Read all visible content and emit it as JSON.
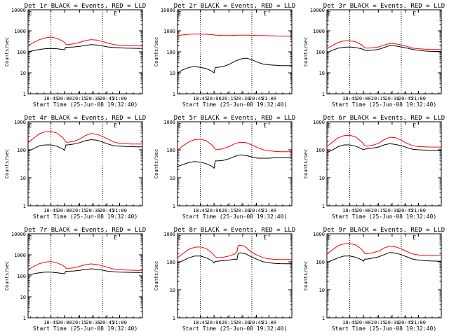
{
  "colors": {
    "events": "#000000",
    "lld": "#ff0000",
    "axis": "#000000",
    "background": "#ffffff"
  },
  "common": {
    "ylabel": "Counts/sec",
    "xlabel": "Start Time (25-Jun-08 19:32:40)",
    "xticks": [
      "18:45",
      "20:00",
      "20:15",
      "20:30",
      "20:45",
      "21:00"
    ],
    "yticks": [
      "1",
      "10",
      "100",
      "1000",
      "10000"
    ],
    "marker_e": "E"
  },
  "chart_data": [
    {
      "type": "line",
      "title": "Det 1r BLACK = Events, RED = LLD",
      "xlabel": "Start Time (25-Jun-08 19:32:40)",
      "ylabel": "Counts/sec",
      "yscale": "log",
      "ylim": [
        1,
        10000
      ],
      "xlim": [
        0,
        100
      ],
      "markers_x": [
        20,
        65
      ],
      "end_marker_x": 75,
      "x": [
        0,
        5,
        10,
        15,
        20,
        25,
        30,
        32,
        33,
        35,
        40,
        45,
        50,
        55,
        60,
        65,
        70,
        75,
        80,
        85,
        90,
        95,
        100
      ],
      "series": [
        {
          "name": "Events",
          "values": [
            100,
            115,
            130,
            140,
            145,
            140,
            130,
            125,
            165,
            165,
            170,
            180,
            200,
            220,
            210,
            190,
            170,
            160,
            155,
            150,
            148,
            146,
            145
          ]
        },
        {
          "name": "LLD",
          "values": [
            200,
            280,
            380,
            460,
            500,
            440,
            330,
            280,
            230,
            220,
            240,
            280,
            340,
            380,
            360,
            310,
            260,
            220,
            205,
            200,
            195,
            190,
            190
          ]
        }
      ]
    },
    {
      "type": "line",
      "title": "Det 2r BLACK = Events, RED = LLD",
      "xlabel": "Start Time (25-Jun-08 19:32:40)",
      "ylabel": "Counts/sec",
      "yscale": "log",
      "ylim": [
        1,
        10000
      ],
      "xlim": [
        0,
        100
      ],
      "markers_x": [
        20,
        65
      ],
      "end_marker_x": 75,
      "x": [
        0,
        5,
        10,
        15,
        20,
        25,
        30,
        32,
        33,
        35,
        40,
        45,
        50,
        55,
        60,
        65,
        70,
        75,
        80,
        85,
        90,
        95,
        100
      ],
      "series": [
        {
          "name": "Events",
          "values": [
            10,
            14,
            18,
            20,
            18,
            16,
            12,
            10,
            18,
            18,
            20,
            25,
            35,
            45,
            50,
            42,
            32,
            26,
            24,
            23,
            22,
            22,
            22
          ]
        },
        {
          "name": "LLD",
          "values": [
            600,
            640,
            680,
            700,
            700,
            680,
            650,
            640,
            620,
            610,
            600,
            600,
            610,
            620,
            620,
            610,
            600,
            590,
            580,
            570,
            560,
            560,
            560
          ]
        }
      ]
    },
    {
      "type": "line",
      "title": "Det 3r BLACK = Events, RED = LLD",
      "xlabel": "Start Time (25-Jun-08 19:32:40)",
      "ylabel": "Counts/sec",
      "yscale": "log",
      "ylim": [
        1,
        10000
      ],
      "xlim": [
        0,
        100
      ],
      "markers_x": [
        20,
        65
      ],
      "end_marker_x": 75,
      "x": [
        0,
        5,
        10,
        15,
        20,
        25,
        30,
        32,
        33,
        35,
        40,
        45,
        50,
        55,
        60,
        65,
        70,
        75,
        80,
        85,
        90,
        95,
        100
      ],
      "series": [
        {
          "name": "Events",
          "values": [
            90,
            120,
            150,
            165,
            170,
            160,
            140,
            130,
            120,
            115,
            120,
            130,
            160,
            200,
            190,
            170,
            150,
            130,
            118,
            110,
            105,
            104,
            104
          ]
        },
        {
          "name": "LLD",
          "values": [
            140,
            200,
            280,
            330,
            340,
            300,
            220,
            180,
            155,
            150,
            155,
            170,
            210,
            250,
            240,
            210,
            180,
            150,
            140,
            135,
            130,
            128,
            128
          ]
        }
      ]
    },
    {
      "type": "line",
      "title": "Det 4r BLACK = Events, RED = LLD",
      "xlabel": "Start Time (25-Jun-08 19:32:40)",
      "ylabel": "Counts/sec",
      "yscale": "log",
      "ylim": [
        1,
        1000
      ],
      "xlim": [
        0,
        100
      ],
      "markers_x": [
        20,
        65
      ],
      "end_marker_x": 75,
      "x": [
        0,
        5,
        10,
        15,
        20,
        25,
        30,
        32,
        33,
        35,
        40,
        45,
        50,
        55,
        60,
        65,
        70,
        75,
        80,
        85,
        90,
        95,
        100
      ],
      "series": [
        {
          "name": "Events",
          "values": [
            90,
            110,
            140,
            150,
            150,
            135,
            110,
            95,
            150,
            150,
            160,
            180,
            210,
            230,
            220,
            190,
            160,
            140,
            135,
            132,
            130,
            128,
            128
          ]
        },
        {
          "name": "LLD",
          "values": [
            180,
            260,
            380,
            440,
            450,
            400,
            280,
            220,
            190,
            185,
            200,
            240,
            320,
            380,
            360,
            300,
            240,
            190,
            170,
            165,
            160,
            160,
            160
          ]
        }
      ]
    },
    {
      "type": "line",
      "title": "Det 5r BLACK = Events, RED = LLD",
      "xlabel": "Start Time (25-Jun-08 19:32:40)",
      "ylabel": "Counts/sec",
      "yscale": "log",
      "ylim": [
        1,
        1000
      ],
      "xlim": [
        0,
        100
      ],
      "markers_x": [
        20,
        65
      ],
      "end_marker_x": 75,
      "x": [
        0,
        5,
        10,
        15,
        20,
        25,
        30,
        32,
        33,
        35,
        40,
        45,
        50,
        55,
        60,
        65,
        70,
        75,
        80,
        85,
        90,
        95,
        100
      ],
      "series": [
        {
          "name": "Events",
          "values": [
            25,
            30,
            35,
            38,
            36,
            32,
            26,
            22,
            40,
            40,
            42,
            48,
            58,
            66,
            62,
            56,
            50,
            50,
            50,
            52,
            52,
            52,
            52
          ]
        },
        {
          "name": "LLD",
          "values": [
            100,
            140,
            190,
            230,
            240,
            210,
            150,
            120,
            105,
            100,
            110,
            130,
            165,
            185,
            180,
            150,
            120,
            100,
            92,
            88,
            85,
            85,
            85
          ]
        }
      ]
    },
    {
      "type": "line",
      "title": "Det 6r BLACK = Events, RED = LLD",
      "xlabel": "Start Time (25-Jun-08 19:32:40)",
      "ylabel": "Counts/sec",
      "yscale": "log",
      "ylim": [
        1,
        1000
      ],
      "xlim": [
        0,
        100
      ],
      "markers_x": [
        20,
        65
      ],
      "end_marker_x": 75,
      "x": [
        0,
        5,
        10,
        15,
        20,
        25,
        30,
        32,
        33,
        35,
        40,
        45,
        50,
        55,
        60,
        65,
        70,
        75,
        80,
        85,
        90,
        95,
        100
      ],
      "series": [
        {
          "name": "Events",
          "values": [
            80,
            100,
            130,
            150,
            150,
            135,
            110,
            100,
            105,
            110,
            115,
            125,
            150,
            165,
            155,
            140,
            120,
            105,
            100,
            98,
            96,
            95,
            95
          ]
        },
        {
          "name": "LLD",
          "values": [
            130,
            190,
            270,
            320,
            330,
            290,
            200,
            160,
            140,
            135,
            145,
            170,
            230,
            280,
            270,
            220,
            170,
            140,
            130,
            128,
            126,
            125,
            125
          ]
        }
      ]
    },
    {
      "type": "line",
      "title": "Det 7r BLACK = Events, RED = LLD",
      "xlabel": "Start Time (25-Jun-08 19:32:40)",
      "ylabel": "Counts/sec",
      "yscale": "log",
      "ylim": [
        1,
        10000
      ],
      "xlim": [
        0,
        100
      ],
      "markers_x": [
        20,
        65
      ],
      "end_marker_x": 75,
      "x": [
        0,
        5,
        10,
        15,
        20,
        25,
        30,
        32,
        33,
        35,
        40,
        45,
        50,
        55,
        60,
        65,
        70,
        75,
        80,
        85,
        90,
        95,
        100
      ],
      "series": [
        {
          "name": "Events",
          "values": [
            110,
            125,
            140,
            150,
            150,
            140,
            130,
            125,
            165,
            165,
            170,
            180,
            200,
            215,
            205,
            185,
            165,
            155,
            150,
            148,
            146,
            145,
            145
          ]
        },
        {
          "name": "LLD",
          "values": [
            200,
            280,
            380,
            450,
            480,
            420,
            320,
            270,
            230,
            225,
            240,
            280,
            340,
            370,
            350,
            300,
            250,
            210,
            195,
            190,
            185,
            182,
            180
          ]
        }
      ]
    },
    {
      "type": "line",
      "title": "Det 8r BLACK = Events, RED = LLD",
      "xlabel": "Start Time (25-Jun-08 19:32:40)",
      "ylabel": "Counts/sec",
      "yscale": "log",
      "ylim": [
        1,
        1000
      ],
      "xlim": [
        0,
        100
      ],
      "markers_x": [
        20,
        65
      ],
      "end_marker_x": 75,
      "x": [
        0,
        5,
        10,
        15,
        20,
        25,
        30,
        32,
        33,
        35,
        40,
        45,
        50,
        52,
        53,
        55,
        58,
        60,
        62,
        65,
        70,
        75,
        80,
        85,
        90,
        95,
        100
      ],
      "series": [
        {
          "name": "Events",
          "values": [
            90,
            110,
            140,
            160,
            160,
            140,
            110,
            90,
            105,
            105,
            110,
            115,
            125,
            120,
            200,
            210,
            200,
            190,
            170,
            150,
            120,
            100,
            92,
            88,
            86,
            85,
            85
          ]
        },
        {
          "name": "LLD",
          "values": [
            140,
            200,
            280,
            330,
            340,
            300,
            210,
            170,
            150,
            140,
            145,
            160,
            190,
            230,
            380,
            390,
            370,
            330,
            270,
            220,
            170,
            140,
            128,
            122,
            120,
            120,
            120
          ]
        }
      ]
    },
    {
      "type": "line",
      "title": "Det 9r BLACK = Events, RED = LLD",
      "xlabel": "Start Time (25-Jun-08 19:32:40)",
      "ylabel": "Counts/sec",
      "yscale": "log",
      "ylim": [
        1,
        1000
      ],
      "xlim": [
        0,
        100
      ],
      "markers_x": [
        20,
        65
      ],
      "end_marker_x": 75,
      "x": [
        0,
        5,
        10,
        15,
        20,
        25,
        30,
        32,
        33,
        35,
        40,
        45,
        50,
        55,
        60,
        65,
        70,
        75,
        80,
        85,
        90,
        95,
        100
      ],
      "series": [
        {
          "name": "Events",
          "values": [
            95,
            115,
            140,
            160,
            160,
            145,
            120,
            105,
            125,
            125,
            135,
            150,
            180,
            215,
            205,
            180,
            150,
            125,
            115,
            110,
            108,
            106,
            105
          ]
        },
        {
          "name": "LLD",
          "values": [
            190,
            270,
            380,
            440,
            450,
            400,
            290,
            230,
            200,
            195,
            210,
            240,
            310,
            360,
            340,
            290,
            230,
            190,
            175,
            170,
            168,
            166,
            165
          ]
        }
      ]
    }
  ]
}
